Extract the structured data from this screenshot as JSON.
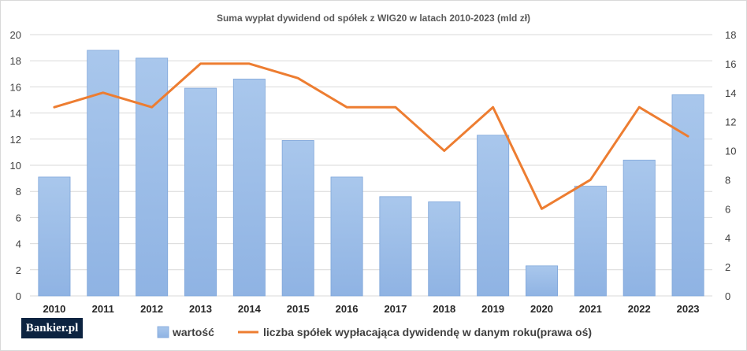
{
  "chart_data": {
    "type": "bar",
    "title": "Suma wypłat dywidend od spółek z WIG20 w latach 2010-2023 (mld zł)",
    "categories": [
      "2010",
      "2011",
      "2012",
      "2013",
      "2014",
      "2015",
      "2016",
      "2017",
      "2018",
      "2019",
      "2020",
      "2021",
      "2022",
      "2023"
    ],
    "series": [
      {
        "name": "wartość",
        "kind": "bar",
        "axis": "left",
        "values": [
          9.1,
          18.8,
          18.2,
          15.9,
          16.6,
          11.9,
          9.1,
          7.6,
          7.2,
          12.3,
          2.3,
          8.4,
          10.4,
          15.4
        ]
      },
      {
        "name": "liczba spółek wypłacająca dywidendę w danym roku(prawa oś)",
        "kind": "line",
        "axis": "right",
        "values": [
          13,
          14,
          13,
          16,
          16,
          15,
          13,
          13,
          10,
          13,
          6,
          8,
          13,
          11
        ]
      }
    ],
    "y_left": {
      "min": 0,
      "max": 20,
      "step": 2,
      "ticks": [
        "0",
        "2",
        "4",
        "6",
        "8",
        "10",
        "12",
        "14",
        "16",
        "18",
        "20"
      ]
    },
    "y_right": {
      "min": 0,
      "max": 18,
      "step": 2,
      "ticks": [
        "0",
        "2",
        "4",
        "6",
        "8",
        "10",
        "12",
        "14",
        "16",
        "18"
      ]
    },
    "grid": true,
    "legend": "bottom",
    "colors": {
      "bar_top": "#a9c7ec",
      "bar_bottom": "#8fb3e3",
      "bar_stroke": "#7fa6da",
      "line": "#ed7d31",
      "grid": "#d9d9d9"
    }
  },
  "logo": {
    "text_main": "Bankier",
    "text_dot": ".",
    "text_tld": "pl"
  }
}
